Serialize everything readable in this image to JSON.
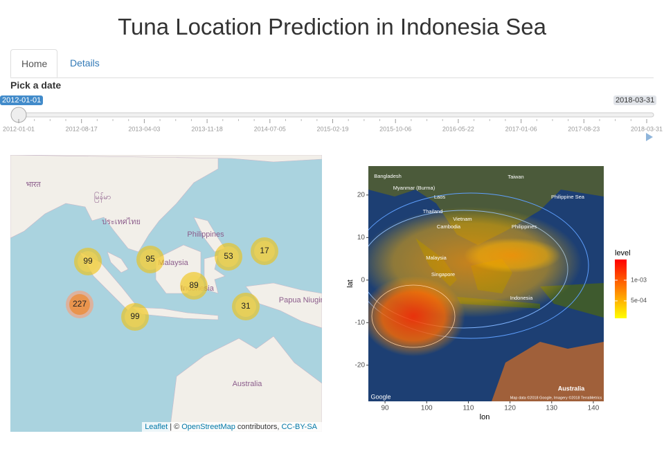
{
  "header": {
    "title": "Tuna Location Prediction in Indonesia Sea"
  },
  "tabs": [
    "Home",
    "Details"
  ],
  "slider": {
    "label": "Pick a date",
    "value": "2012-01-01",
    "max": "2018-03-31",
    "ticks": [
      "2012-01-01",
      "2012-08-17",
      "2013-04-03",
      "2013-11-18",
      "2014-07-05",
      "2015-02-19",
      "2015-10-06",
      "2016-05-22",
      "2017-01-06",
      "2017-08-23",
      "2018-03-31"
    ]
  },
  "map": {
    "places": [
      "भारत",
      "မြန်မာ",
      "ประเทศไทย",
      "Philippines",
      "Malaysia",
      "Indonesia",
      "Papua Niugini",
      "Australia"
    ],
    "clusters": [
      99,
      95,
      53,
      17,
      89,
      227,
      99,
      31
    ],
    "attribution": [
      "Leaflet",
      "| ©",
      "OpenStreetMap",
      "contributors,",
      "CC-BY-SA"
    ]
  },
  "plot": {
    "xlabel": "lon",
    "ylabel": "lat",
    "xlim": [
      86,
      142.5
    ],
    "ylim": [
      -28.5,
      26.8
    ],
    "xticks": [
      90,
      100,
      110,
      120,
      130,
      140
    ],
    "yticks": [
      -20,
      -10,
      0,
      10,
      20
    ],
    "legend_title": "level",
    "legend_lim": [
      8e-05,
      0.0015
    ],
    "legend_ticks": [
      {
        "value": 0.001,
        "label": "1e-03"
      },
      {
        "value": 0.0005,
        "label": "5e-04"
      }
    ],
    "map_labels": [
      "Bangladesh",
      "Myanmar (Burma)",
      "Laos",
      "Thailand",
      "Vietnam",
      "Cambodia",
      "Philippines",
      "Malaysia",
      "Singapore",
      "Indonesia",
      "Taiwan",
      "Philippine Sea",
      "Australia",
      "Google",
      "Map data ©2018 Google, Imagery ©2018 TerraMetrics"
    ]
  }
}
